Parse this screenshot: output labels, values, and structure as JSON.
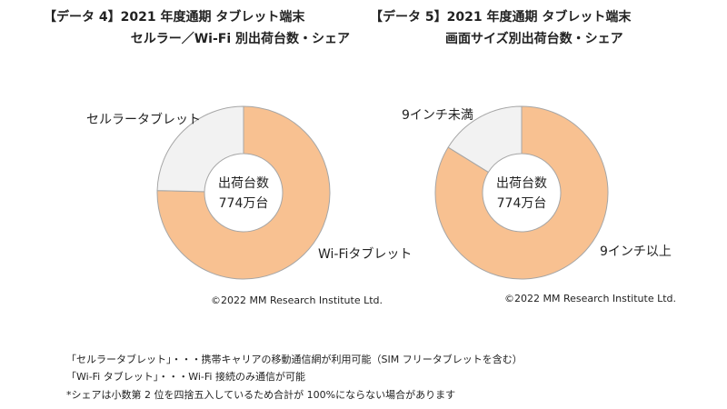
{
  "chart_data": [
    {
      "type": "pie",
      "donut": true,
      "title_line1": "【データ 4】2021 年度通期  タブレット端末",
      "title_line2": "セルラー／Wi-Fi 別出荷台数・シェア",
      "center_line1": "出荷台数",
      "center_line2": "774万台",
      "slices": [
        {
          "label": "Wi-Fiタブレット",
          "value": 75.4,
          "color": "#F8C191"
        },
        {
          "label": "セルラータブレット",
          "value": 24.6,
          "color": "#F2F2F2"
        }
      ],
      "copyright": "©2022  MM Research Institute Ltd."
    },
    {
      "type": "pie",
      "donut": true,
      "title_line1": "【データ 5】2021 年度通期  タブレット端末",
      "title_line2": "画面サイズ別出荷台数・シェア",
      "center_line1": "出荷台数",
      "center_line2": "774万台",
      "slices": [
        {
          "label": "9インチ以上",
          "value": 83.8,
          "color": "#F8C191"
        },
        {
          "label": "9インチ未満",
          "value": 16.2,
          "color": "#F2F2F2"
        }
      ],
      "copyright": "©2022  MM Research Institute Ltd."
    }
  ],
  "notes": [
    "「セルラータブレット」・・・携帯キャリアの移動通信網が利用可能（SIM フリータブレットを含む）",
    "「Wi-Fi タブレット」・・・Wi-Fi 接続のみ通信が可能",
    "*シェアは小数第 2 位を四捨五入しているため合計が 100%にならない場合があります"
  ],
  "stroke_color": "#A6A6A6"
}
